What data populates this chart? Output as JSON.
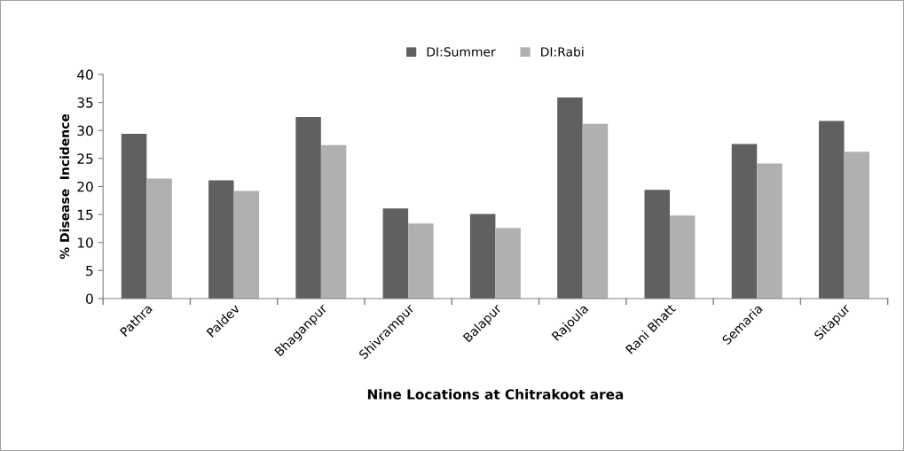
{
  "chart_data": {
    "type": "bar",
    "xlabel": "Nine Locations at Chitrakoot area",
    "ylabel": "% Disease  Incidence",
    "categories": [
      "Pathra",
      "Paldev",
      "Bhaganpur",
      "Shivrampur",
      "Balapur",
      "Rajoula",
      "Rani Bhatt",
      "Semaria",
      "Sitapur"
    ],
    "series": [
      {
        "name": "DI:Summer",
        "color": "#606060",
        "values": [
          29.4,
          21.1,
          32.4,
          16.1,
          15.1,
          35.9,
          19.4,
          27.6,
          31.7
        ]
      },
      {
        "name": "DI:Rabi",
        "color": "#b0b0b0",
        "values": [
          21.4,
          19.2,
          27.4,
          13.4,
          12.6,
          31.2,
          14.8,
          24.1,
          26.2
        ]
      }
    ],
    "ylim": [
      0,
      40
    ],
    "yticks": [
      0,
      5,
      10,
      15,
      20,
      25,
      30,
      35,
      40
    ],
    "grid": false,
    "legend": "top"
  }
}
